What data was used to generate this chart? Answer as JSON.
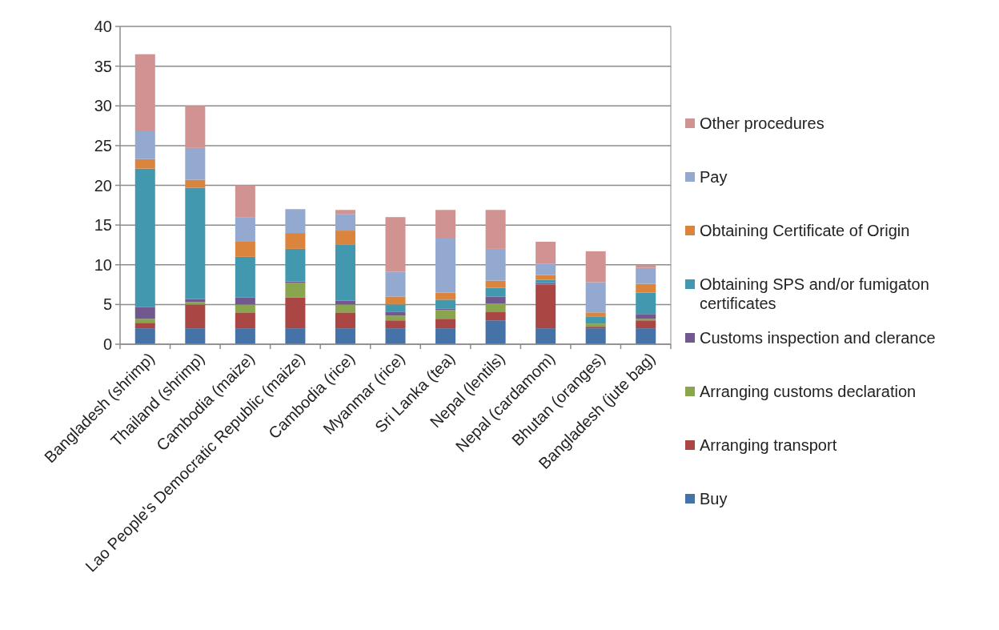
{
  "chart_data": {
    "type": "bar",
    "stacked": true,
    "categories": [
      "Bangladesh (shrimp)",
      "Thailand (shrimp)",
      "Cambodia (maize)",
      "Lao People's Democratic Republic (maize)",
      "Cambodia (rice)",
      "Myanmar (rice)",
      "Sri Lanka (tea)",
      "Nepal (lentils)",
      "Nepal (cardamom)",
      "Bhutan (oranges)",
      "Bangladesh (jute bag)"
    ],
    "series": [
      {
        "name": "Buy",
        "color": "#4572a7",
        "values": [
          2,
          2,
          2,
          2,
          2,
          2,
          2,
          3,
          2,
          2,
          2
        ]
      },
      {
        "name": "Arranging transport",
        "color": "#aa4643",
        "values": [
          0.7,
          3,
          2,
          3.9,
          2,
          1,
          1.2,
          1.1,
          5.5,
          0.2,
          1
        ]
      },
      {
        "name": "Arranging customs declaration",
        "color": "#89a54e",
        "values": [
          0.5,
          0.3,
          1,
          1.8,
          1,
          0.6,
          1.1,
          1,
          0,
          0.4,
          0.2
        ]
      },
      {
        "name": "Customs inspection and clerance",
        "color": "#71588f",
        "values": [
          1.5,
          0.4,
          0.9,
          0.2,
          0.5,
          0.5,
          0.2,
          0.9,
          0.2,
          0,
          0.6
        ]
      },
      {
        "name": "Obtaining SPS and/or fumigaton certificates",
        "color": "#4198af",
        "values": [
          17.4,
          14,
          5.1,
          4.1,
          7,
          0.9,
          1.1,
          1.1,
          0.4,
          0.9,
          2.7
        ]
      },
      {
        "name": "Obtaining Certificate of Origin",
        "color": "#db843d",
        "values": [
          1.2,
          1,
          1.9,
          2,
          1.8,
          1,
          0.9,
          0.9,
          0.6,
          0.5,
          1.1
        ]
      },
      {
        "name": "Pay",
        "color": "#93a9cf",
        "values": [
          3.5,
          4,
          3.1,
          3,
          2.1,
          3.1,
          6.8,
          4,
          1.4,
          3.8,
          2
        ]
      },
      {
        "name": "Other procedures",
        "color": "#d19392",
        "values": [
          9.7,
          5.3,
          4,
          0,
          0.5,
          6.9,
          3.6,
          4.9,
          2.8,
          3.9,
          0.4
        ]
      }
    ],
    "ylim": [
      0,
      40
    ],
    "yticks": [
      0,
      5,
      10,
      15,
      20,
      25,
      30,
      35,
      40
    ],
    "grid": "y",
    "legend": "right"
  }
}
